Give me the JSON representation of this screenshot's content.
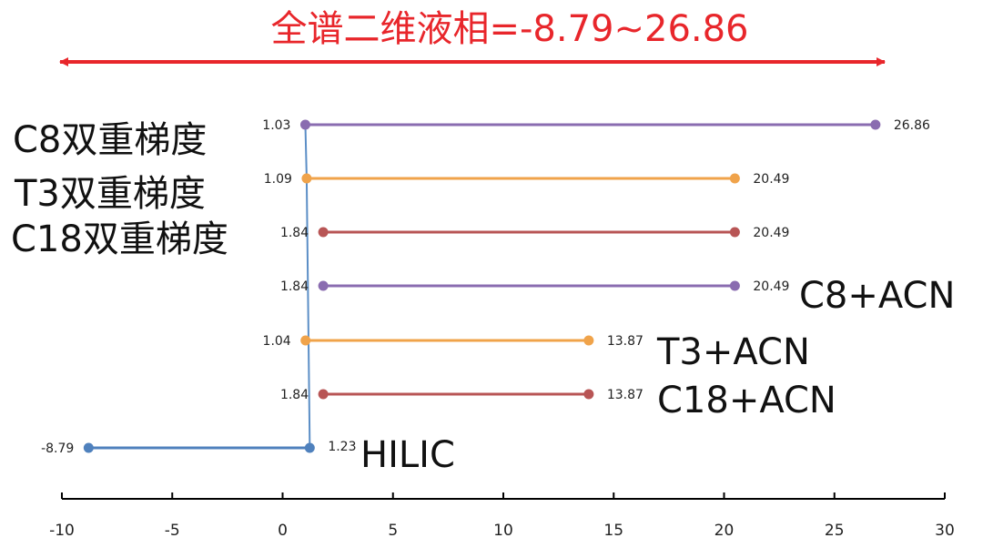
{
  "chart_data": {
    "type": "range-dumbbell",
    "title": "全谱二维液相=-8.79~26.86",
    "title_color": "#e8262b",
    "arrow_color": "#e8262b",
    "xlim": [
      -10,
      30
    ],
    "xticks": [
      -10,
      -5,
      0,
      5,
      10,
      15,
      20,
      25,
      30
    ],
    "connector_color": "#5b8ec6",
    "connector_points": [
      {
        "row": 0,
        "x": 1.03
      },
      {
        "row": 1,
        "x": 1.09
      },
      {
        "row": 6,
        "x": 1.23
      }
    ],
    "series": [
      {
        "name": "C8双重梯度",
        "start": 1.03,
        "end": 26.86,
        "start_label": "1.03",
        "end_label": "26.86",
        "color": "#8a6cb0"
      },
      {
        "name": "T3双重梯度",
        "start": 1.09,
        "end": 20.49,
        "start_label": "1.09",
        "end_label": "20.49",
        "color": "#f0a34a"
      },
      {
        "name": "C18双重梯度",
        "start": 1.84,
        "end": 20.49,
        "start_label": "1.84",
        "end_label": "20.49",
        "color": "#b85555"
      },
      {
        "name": "C8+ACN",
        "start": 1.84,
        "end": 20.49,
        "start_label": "1.84",
        "end_label": "20.49",
        "color": "#8a6cb0"
      },
      {
        "name": "T3+ACN",
        "start": 1.04,
        "end": 13.87,
        "start_label": "1.04",
        "end_label": "13.87",
        "color": "#f0a34a"
      },
      {
        "name": "C18+ACN",
        "start": 1.84,
        "end": 13.87,
        "start_label": "1.84",
        "end_label": "13.87",
        "color": "#b85555"
      },
      {
        "name": "HILIC",
        "start": -8.79,
        "end": 1.23,
        "start_label": "-8.79",
        "end_label": "1.23",
        "color": "#4f81bd"
      }
    ]
  }
}
